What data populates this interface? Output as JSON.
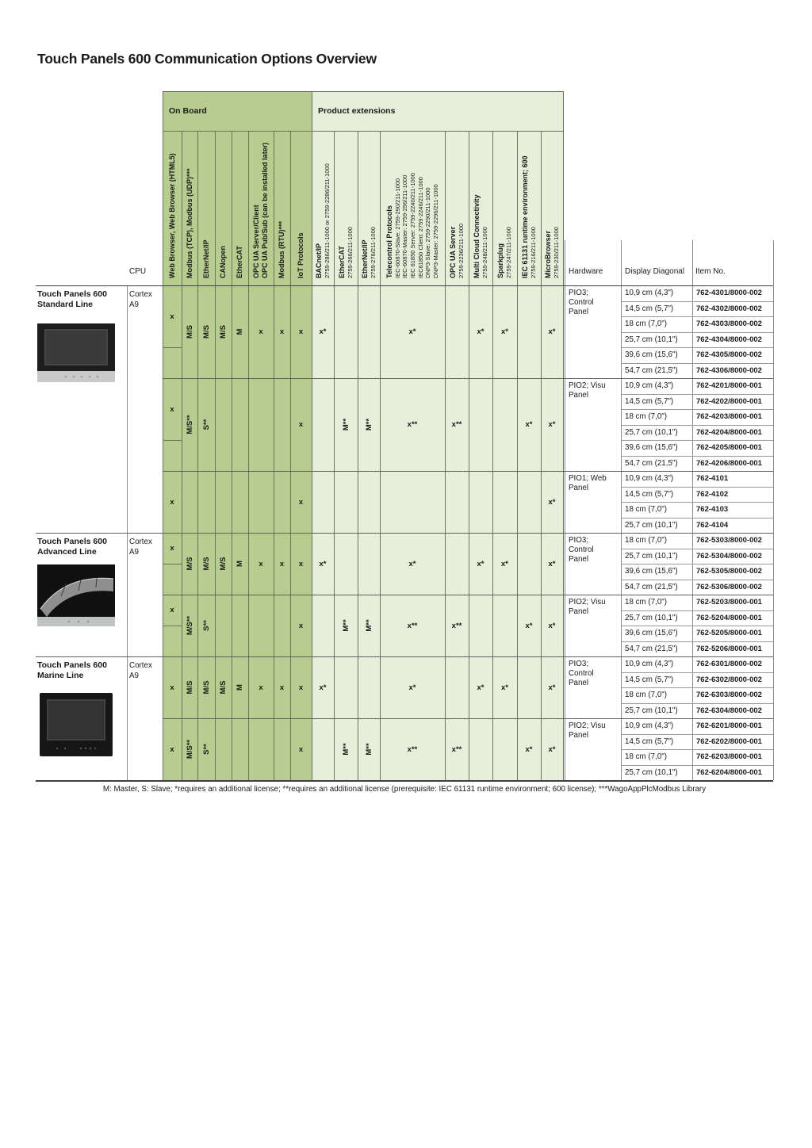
{
  "page": {
    "title": "Touch Panels 600 Communication Options Overview",
    "footnote": "M: Master, S: Slave; *requires an additional license; **requires an additional license (prerequisite: IEC 61131 runtime environment; 600 license); ***WagoAppPlcModbus Library"
  },
  "colors": {
    "on_board_bg": "#b7cc8f",
    "extensions_bg": "#e7eeda"
  },
  "table": {
    "group_headers": {
      "on_board": "On Board",
      "product_extensions": "Product extensions"
    },
    "corner_headers": {
      "cpu": "CPU",
      "hardware": "Hardware",
      "display_diagonal": "Display Diagonal",
      "item_no": "Item No."
    },
    "onboard_columns": [
      {
        "lines": [
          "Web Browser, Web Browser (HTML5)"
        ]
      },
      {
        "lines": [
          "Modbus (TCP), Modbus (UDP)***"
        ]
      },
      {
        "lines": [
          "EtherNet/IP"
        ]
      },
      {
        "lines": [
          "CANopen"
        ]
      },
      {
        "lines": [
          "EtherCAT"
        ]
      },
      {
        "lines": [
          "OPC UA Server/Client",
          "OPC UA Pub/Sub (can be installed later)"
        ]
      },
      {
        "lines": [
          "Modbus (RTU)***"
        ]
      },
      {
        "lines": [
          "IoT Protocols"
        ]
      }
    ],
    "extension_columns": [
      {
        "label": "BACnet/IP",
        "sub": [
          "2759-286/211-1000 or 2759-2286/211-1000"
        ]
      },
      {
        "label": "EtherCAT",
        "sub": [
          "2759-266/211-1000"
        ]
      },
      {
        "label": "EtherNet/IP",
        "sub": [
          "2759-276/211-1000"
        ]
      },
      {
        "label": "Telecontrol Protocols",
        "sub": [
          "IEC-60870-Slave: 2759-290/211-1000",
          "IEC-60870-Master: 2759-296/211-1000",
          "IEC 61850 Server: 2759-2240/211-1000",
          "IEC61850 Client: 2759-2246/211-1000",
          "DNP3-Slave: 2759-2290/211-1000",
          "DNP3-Master: 2759-2296/211-1000"
        ]
      },
      {
        "label": "OPC UA Server",
        "sub": [
          "2759-2236/211-1000"
        ]
      },
      {
        "label": "Multi Cloud Connectivity",
        "sub": [
          "2759-248/211-1000"
        ]
      },
      {
        "label": "Sparkplug",
        "sub": [
          "2759-247/211-1000"
        ]
      },
      {
        "label": "IEC 61131 runtime environment; 600",
        "sub": [
          "2759-216/211-1000"
        ]
      },
      {
        "label": "MicroBrowser",
        "sub": [
          "2759-230/211-1000"
        ]
      }
    ],
    "product_lines": [
      {
        "name_lines": [
          "Touch Panels 600",
          "Standard Line"
        ],
        "cpu_lines": [
          "Cortex",
          "A9"
        ],
        "image": "standard-line-product-image",
        "blocks": [
          {
            "hardware": "PIO3; Control Panel",
            "web_browser_cell_rows": 4,
            "onboard": [
              "x",
              "M/S",
              "M/S",
              "M/S",
              "M",
              "x",
              "x",
              "x"
            ],
            "extensions": [
              "x*",
              "",
              "",
              "x*",
              "",
              "x*",
              "x*",
              "",
              "x*"
            ],
            "rows": [
              {
                "display": "10,9 cm (4,3\")",
                "item": "762-4301/8000-002"
              },
              {
                "display": "14,5 cm (5,7\")",
                "item": "762-4302/8000-002"
              },
              {
                "display": "18 cm (7,0\")",
                "item": "762-4303/8000-002"
              },
              {
                "display": "25,7 cm (10,1\")",
                "item": "762-4304/8000-002"
              },
              {
                "display": "39,6 cm (15,6\")",
                "item": "762-4305/8000-002"
              },
              {
                "display": "54,7 cm (21,5\")",
                "item": "762-4306/8000-002"
              }
            ]
          },
          {
            "hardware": "PIO2; Visu Panel",
            "web_browser_cell_rows": 4,
            "onboard": [
              "x",
              "M/S**",
              "S**",
              "",
              "",
              "",
              "",
              "x"
            ],
            "extensions": [
              "",
              "M**",
              "M**",
              "x**",
              "x**",
              "",
              "",
              "x*",
              "x*"
            ],
            "rows": [
              {
                "display": "10,9 cm (4,3\")",
                "item": "762-4201/8000-001"
              },
              {
                "display": "14,5 cm (5,7\")",
                "item": "762-4202/8000-001"
              },
              {
                "display": "18 cm (7,0\")",
                "item": "762-4203/8000-001"
              },
              {
                "display": "25,7 cm (10,1\")",
                "item": "762-4204/8000-001"
              },
              {
                "display": "39,6 cm (15,6\")",
                "item": "762-4205/8000-001"
              },
              {
                "display": "54,7 cm (21,5\")",
                "item": "762-4206/8000-001"
              }
            ]
          },
          {
            "hardware": "PIO1; Web Panel",
            "web_browser_cell_rows": 0,
            "onboard": [
              "x",
              "",
              "",
              "",
              "",
              "",
              "",
              "x"
            ],
            "extensions": [
              "",
              "",
              "",
              "",
              "",
              "",
              "",
              "",
              "x*"
            ],
            "rows": [
              {
                "display": "10,9 cm (4,3\")",
                "item": "762-4101"
              },
              {
                "display": "14,5 cm (5,7\")",
                "item": "762-4102"
              },
              {
                "display": "18 cm (7,0\")",
                "item": "762-4103"
              },
              {
                "display": "25,7 cm (10,1\")",
                "item": "762-4104"
              }
            ]
          }
        ]
      },
      {
        "name_lines": [
          "Touch Panels 600",
          "Advanced Line"
        ],
        "cpu_lines": [
          "Cortex",
          "A9"
        ],
        "image": "advanced-line-product-image",
        "blocks": [
          {
            "hardware": "PIO3; Control Panel",
            "web_browser_cell_rows": 2,
            "onboard": [
              "x",
              "M/S",
              "M/S",
              "M/S",
              "M",
              "x",
              "x",
              "x"
            ],
            "extensions": [
              "x*",
              "",
              "",
              "x*",
              "",
              "x*",
              "x*",
              "",
              "x*"
            ],
            "rows": [
              {
                "display": "18 cm (7,0\")",
                "item": "762-5303/8000-002"
              },
              {
                "display": "25,7 cm (10,1\")",
                "item": "762-5304/8000-002"
              },
              {
                "display": "39,6 cm (15,6\")",
                "item": "762-5305/8000-002"
              },
              {
                "display": "54,7 cm (21,5\")",
                "item": "762-5306/8000-002"
              }
            ]
          },
          {
            "hardware": "PIO2; Visu Panel",
            "web_browser_cell_rows": 2,
            "onboard": [
              "x",
              "M/S**",
              "S**",
              "",
              "",
              "",
              "",
              "x"
            ],
            "extensions": [
              "",
              "M**",
              "M**",
              "x**",
              "x**",
              "",
              "",
              "x*",
              "x*"
            ],
            "rows": [
              {
                "display": "18 cm (7,0\")",
                "item": "762-5203/8000-001"
              },
              {
                "display": "25,7 cm (10,1\")",
                "item": "762-5204/8000-001"
              },
              {
                "display": "39,6 cm (15,6\")",
                "item": "762-5205/8000-001"
              },
              {
                "display": "54,7 cm (21,5\")",
                "item": "762-5206/8000-001"
              }
            ]
          }
        ]
      },
      {
        "name_lines": [
          "Touch Panels 600",
          "Marine Line"
        ],
        "cpu_lines": [
          "Cortex",
          "A9"
        ],
        "image": "marine-line-product-image",
        "blocks": [
          {
            "hardware": "PIO3; Control Panel",
            "web_browser_cell_rows": 0,
            "onboard": [
              "x",
              "M/S",
              "M/S",
              "M/S",
              "M",
              "x",
              "x",
              "x"
            ],
            "extensions": [
              "x*",
              "",
              "",
              "x*",
              "",
              "x*",
              "x*",
              "",
              "x*"
            ],
            "rows": [
              {
                "display": "10,9 cm (4,3\")",
                "item": "762-6301/8000-002"
              },
              {
                "display": "14,5 cm (5,7\")",
                "item": "762-6302/8000-002"
              },
              {
                "display": "18 cm (7,0\")",
                "item": "762-6303/8000-002"
              },
              {
                "display": "25,7 cm (10,1\")",
                "item": "762-6304/8000-002"
              }
            ]
          },
          {
            "hardware": "PIO2; Visu Panel",
            "web_browser_cell_rows": 0,
            "onboard": [
              "x",
              "M/S**",
              "S**",
              "",
              "",
              "",
              "",
              "x"
            ],
            "extensions": [
              "",
              "M**",
              "M**",
              "x**",
              "x**",
              "",
              "",
              "x*",
              "x*"
            ],
            "rows": [
              {
                "display": "10,9 cm (4,3\")",
                "item": "762-6201/8000-001"
              },
              {
                "display": "14,5 cm (5,7\")",
                "item": "762-6202/8000-001"
              },
              {
                "display": "18 cm (7,0\")",
                "item": "762-6203/8000-001"
              },
              {
                "display": "25,7 cm (10,1\")",
                "item": "762-6204/8000-001"
              }
            ]
          }
        ]
      }
    ]
  }
}
